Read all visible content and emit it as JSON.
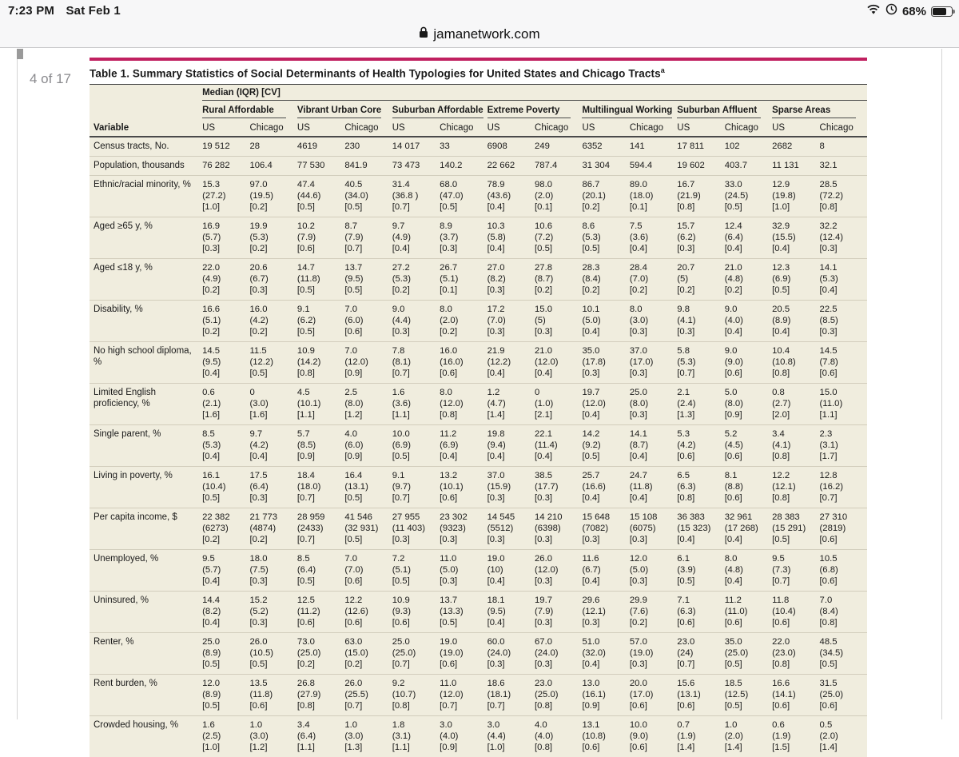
{
  "status_bar": {
    "time": "7:23 PM",
    "date": "Sat Feb 1",
    "battery_pct": "68%"
  },
  "url_bar": {
    "domain": "jamanetwork.com"
  },
  "page_indicator": "4 of 17",
  "colors": {
    "accent": "#c02060",
    "table_bg": "#f0edde"
  },
  "table": {
    "title": "Table 1. Summary Statistics of Social Determinants of Health Typologies for United States and Chicago Tracts",
    "title_superscript": "a",
    "spanner": "Median (IQR) [CV]",
    "variable_header": "Variable",
    "groups": [
      "Rural Affordable",
      "Vibrant Urban Core",
      "Suburban Affordable",
      "Extreme Poverty",
      "Multilingual Working",
      "Suburban Affluent",
      "Sparse Areas"
    ],
    "subheaders": [
      "US",
      "Chicago"
    ],
    "rows": [
      {
        "label": "Census tracts, No.",
        "cells": [
          "19 512",
          "28",
          "4619",
          "230",
          "14 017",
          "33",
          "6908",
          "249",
          "6352",
          "141",
          "17 811",
          "102",
          "2682",
          "8"
        ]
      },
      {
        "label": "Population, thousands",
        "cells": [
          "76 282",
          "106.4",
          "77 530",
          "841.9",
          "73 473",
          "140.2",
          "22 662",
          "787.4",
          "31 304",
          "594.4",
          "19 602",
          "403.7",
          "11 131",
          "32.1"
        ]
      },
      {
        "label": "Ethnic/racial minority, %",
        "cells": [
          "15.3\n(27.2)\n[1.0]",
          "97.0\n(19.5)\n[0.2]",
          "47.4\n(44.6)\n[0.5]",
          "40.5\n(34.0)\n[0.5]",
          "31.4\n(36.8 )\n[0.7]",
          "68.0\n(47.0)\n[0.5]",
          "78.9\n(43.6)\n[0.4]",
          "98.0\n(2.0)\n[0.1]",
          "86.7\n(20.1)\n[0.2]",
          "89.0\n(18.0)\n[0.1]",
          "16.7\n(21.9)\n[0.8]",
          "33.0\n(24.5)\n[0.5]",
          "12.9\n(19.8)\n[1.0]",
          "28.5\n(72.2)\n[0.8]"
        ]
      },
      {
        "label": "Aged ≥65 y, %",
        "cells": [
          "16.9\n(5.7)\n[0.3]",
          "19.9\n(5.3)\n[0.2]",
          "10.2\n(7.9)\n[0.6]",
          "8.7\n(7.9)\n[0.7]",
          "9.7\n(4.9)\n[0.4]",
          "8.9\n(3.7)\n[0.3]",
          "10.3\n(5.8)\n[0.4]",
          "10.6\n(7.2)\n[0.5]",
          "8.6\n(5.3)\n[0.5]",
          "7.5\n(3.6)\n[0.4]",
          "15.7\n(6.2)\n[0.3]",
          "12.4\n(6.4)\n[0.4]",
          "32.9\n(15.5)\n[0.4]",
          "32.2\n(12.4)\n[0.3]"
        ]
      },
      {
        "label": "Aged ≤18 y, %",
        "cells": [
          "22.0\n(4.9)\n[0.2]",
          "20.6\n(6.7)\n[0.3]",
          "14.7\n(11.8)\n[0.5]",
          "13.7\n(9.5)\n[0.5]",
          "27.2\n(5.3)\n[0.2]",
          "26.7\n(5.1)\n[0.1]",
          "27.0\n(8.2)\n[0.3]",
          "27.8\n(8.7)\n[0.2]",
          "28.3\n(8.4)\n[0.2]",
          "28.4\n(7.0)\n[0.2]",
          "20.7\n(5)\n[0.2]",
          "21.0\n(4.8)\n[0.2]",
          "12.3\n(6.9)\n[0.5]",
          "14.1\n(5.3)\n[0.4]"
        ]
      },
      {
        "label": "Disability, %",
        "cells": [
          "16.6\n(5.1)\n[0.2]",
          "16.0\n(4.2)\n[0.2]",
          "9.1\n(6.2)\n[0.5]",
          "7.0\n(6.0)\n[0.6]",
          "9.0\n(4.4)\n[0.3]",
          "8.0\n(2.0)\n[0.2]",
          "17.2\n(7.0)\n[0.3]",
          "15.0\n(5)\n[0.3]",
          "10.1\n(5.0)\n[0.4]",
          "8.0\n(3.0)\n[0.3]",
          "9.8\n(4.1)\n[0.3]",
          "9.0\n(4.0)\n[0.4]",
          "20.5\n(8.9)\n[0.4]",
          "22.5\n(8.5)\n[0.3]"
        ]
      },
      {
        "label": "No high school diploma, %",
        "cells": [
          "14.5\n(9.5)\n[0.4]",
          "11.5\n(12.2)\n[0.5]",
          "10.9\n(14.2)\n[0.8]",
          "7.0\n(12.0)\n[0.9]",
          "7.8\n(8.1)\n[0.7]",
          "16.0\n(16.0)\n[0.6]",
          "21.9\n(12.2)\n[0.4]",
          "21.0\n(12.0)\n[0.4]",
          "35.0\n(17.8)\n[0.3]",
          "37.0\n(17.0)\n[0.3]",
          "5.8\n(5.3)\n[0.7]",
          "9.0\n(9.0)\n[0.6]",
          "10.4\n(10.8)\n[0.8]",
          "14.5\n(7.8)\n[0.6]"
        ]
      },
      {
        "label": "Limited English proficiency, %",
        "cells": [
          "0.6\n(2.1)\n[1.6]",
          "0\n(3.0)\n[1.6]",
          "4.5\n(10.1)\n[1.1]",
          "2.5\n(8.0)\n[1.2]",
          "1.6\n(3.6)\n[1.1]",
          "8.0\n(12.0)\n[0.8]",
          "1.2\n(4.7)\n[1.4]",
          "0\n(1.0)\n[2.1]",
          "19.7\n(12.0)\n[0.4]",
          "25.0\n(8.0)\n[0.3]",
          "2.1\n(2.4)\n[1.3]",
          "5.0\n(8.0)\n[0.9]",
          "0.8\n(2.7)\n[2.0]",
          "15.0\n(11.0)\n[1.1]"
        ]
      },
      {
        "label": "Single parent, %",
        "cells": [
          "8.5\n(5.3)\n[0.4]",
          "9.7\n(4.2)\n[0.4]",
          "5.7\n(8.5)\n[0.9]",
          "4.0\n(6.0)\n[0.9]",
          "10.0\n(6.9)\n[0.5]",
          "11.2\n(6.9)\n[0.4]",
          "19.8\n(9.4)\n[0.4]",
          "22.1\n(11.4)\n[0.4]",
          "14.2\n(9.2)\n[0.5]",
          "14.1\n(8.7)\n[0.4]",
          "5.3\n(4.2)\n[0.6]",
          "5.2\n(4.5)\n[0.6]",
          "3.4\n(4.1)\n[0.8]",
          "2.3\n(3.1)\n[1.7]"
        ]
      },
      {
        "label": "Living in poverty, %",
        "cells": [
          "16.1\n(10.4)\n[0.5]",
          "17.5\n(6.4)\n[0.3]",
          "18.4\n(18.0)\n[0.7]",
          "16.4\n(13.1)\n[0.5]",
          "9.1\n(9.7)\n[0.7]",
          "13.2\n(10.1)\n[0.6]",
          "37.0\n(15.9)\n[0.3]",
          "38.5\n(17.7)\n[0.3]",
          "25.7\n(16.6)\n[0.4]",
          "24.7\n(11.8)\n[0.4]",
          "6.5\n(6.3)\n[0.8]",
          "8.1\n(8.8)\n[0.6]",
          "12.2\n(12.1)\n[0.8]",
          "12.8\n(16.2)\n[0.7]"
        ]
      },
      {
        "label": "Per capita income, $",
        "cells": [
          "22 382\n(6273)\n[0.2]",
          "21 773\n(4874)\n[0.2]",
          "28 959\n(2433)\n[0.7]",
          "41 546\n(32 931)\n[0.5]",
          "27 955\n(11 403)\n[0.3]",
          "23 302\n(9323)\n[0.3]",
          "14 545\n(5512)\n[0.3]",
          "14 210\n(6398)\n[0.3]",
          "15 648\n(7082)\n[0.3]",
          "15 108\n(6075)\n[0.3]",
          "36 383\n(15 323)\n[0.4]",
          "32 961\n(17 268)\n[0.4]",
          "28 383\n(15 291)\n[0.5]",
          "27 310\n(2819)\n[0.6]"
        ]
      },
      {
        "label": "Unemployed, %",
        "cells": [
          "9.5\n(5.7)\n[0.4]",
          "18.0\n(7.5)\n[0.3]",
          "8.5\n(6.4)\n[0.5]",
          "7.0\n(7.0)\n[0.6]",
          "7.2\n(5.1)\n[0.5]",
          "11.0\n(5.0)\n[0.3]",
          "19.0\n(10)\n[0.4]",
          "26.0\n(12.0)\n[0.3]",
          "11.6\n(6.7)\n[0.4]",
          "12.0\n(5.0)\n[0.3]",
          "6.1\n(3.9)\n[0.5]",
          "8.0\n(4.8)\n[0.4]",
          "9.5\n(7.3)\n[0.7]",
          "10.5\n(6.8)\n[0.6]"
        ]
      },
      {
        "label": "Uninsured, %",
        "cells": [
          "14.4\n(8.2)\n[0.4]",
          "15.2\n(5.2)\n[0.3]",
          "12.5\n(11.2)\n[0.6]",
          "12.2\n(12.6)\n[0.6]",
          "10.9\n(9.3)\n[0.6]",
          "13.7\n(13.3)\n[0.5]",
          "18.1\n(9.5)\n[0.4]",
          "19.7\n(7.9)\n[0.3]",
          "29.6\n(12.1)\n[0.3]",
          "29.9\n(7.6)\n[0.2]",
          "7.1\n(6.3)\n[0.6]",
          "11.2\n(11.0)\n[0.6]",
          "11.8\n(10.4)\n[0.6]",
          "7.0\n(8.4)\n[0.8]"
        ]
      },
      {
        "label": "Renter, %",
        "cells": [
          "25.0\n(8.9)\n[0.5]",
          "26.0\n(10.5)\n[0.5]",
          "73.0\n(25.0)\n[0.2]",
          "63.0\n(15.0)\n[0.2]",
          "25.0\n(25.0)\n[0.7]",
          "19.0\n(19.0)\n[0.6]",
          "60.0\n(24.0)\n[0.3]",
          "67.0\n(24.0)\n[0.3]",
          "51.0\n(32.0)\n[0.4]",
          "57.0\n(19.0)\n[0.3]",
          "23.0\n(24)\n[0.7]",
          "35.0\n(25.0)\n[0.5]",
          "22.0\n(23.0)\n[0.8]",
          "48.5\n(34.5)\n[0.5]"
        ]
      },
      {
        "label": "Rent burden, %",
        "cells": [
          "12.0\n(8.9)\n[0.5]",
          "13.5\n(11.8)\n[0.6]",
          "26.8\n(27.9)\n[0.8]",
          "26.0\n(25.5)\n[0.7]",
          "9.2\n(10.7)\n[0.8]",
          "11.0\n(12.0)\n[0.7]",
          "18.6\n(18.1)\n[0.7]",
          "23.0\n(25.0)\n[0.8]",
          "13.0\n(16.1)\n[0.9]",
          "20.0\n(17.0)\n[0.6]",
          "15.6\n(13.1)\n[0.6]",
          "18.5\n(12.5)\n[0.5]",
          "16.6\n(14.1)\n[0.6]",
          "31.5\n(25.0)\n[0.6]"
        ]
      },
      {
        "label": "Crowded housing, %",
        "cells": [
          "1.6\n(2.5)\n[1.0]",
          "1.0\n(3.0)\n[1.2]",
          "3.4\n(6.4)\n[1.1]",
          "1.0\n(3.0)\n[1.3]",
          "1.8\n(3.1)\n[1.1]",
          "3.0\n(4.0)\n[0.9]",
          "3.0\n(4.4)\n[1.0]",
          "4.0\n(4.0)\n[0.8]",
          "13.1\n(10.8)\n[0.6]",
          "10.0\n(9.0)\n[0.6]",
          "0.7\n(1.9)\n[1.4]",
          "1.0\n(2.0)\n[1.4]",
          "0.6\n(1.9)\n[1.5]",
          "0.5\n(2.0)\n[1.4]"
        ]
      }
    ]
  }
}
